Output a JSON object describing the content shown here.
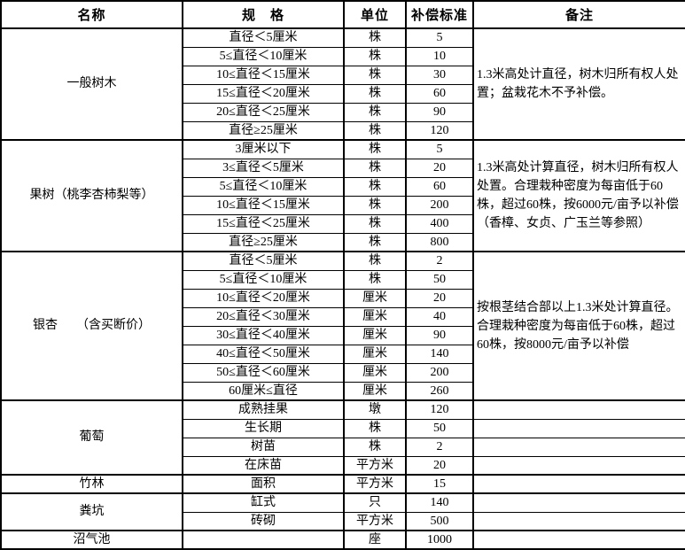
{
  "table": {
    "header": {
      "name": "名称",
      "spec": "规　格",
      "unit": "单位",
      "standard": "补偿标准",
      "remark": "备注"
    },
    "sections": [
      {
        "name": "一般树木",
        "remark_merged": true,
        "remark": "1.3米高处计直径，树木归所有权人处置；盆栽花木不予补偿。",
        "rows": [
          {
            "spec": "直径＜5厘米",
            "unit": "株",
            "standard": "5"
          },
          {
            "spec": "5≤直径＜10厘米",
            "unit": "株",
            "standard": "10"
          },
          {
            "spec": "10≤直径＜15厘米",
            "unit": "株",
            "standard": "30"
          },
          {
            "spec": "15≤直径＜20厘米",
            "unit": "株",
            "standard": "60"
          },
          {
            "spec": "20≤直径＜25厘米",
            "unit": "株",
            "standard": "90"
          },
          {
            "spec": "直径≥25厘米",
            "unit": "株",
            "standard": "120"
          }
        ]
      },
      {
        "name": "果树（桃李杏柿梨等）",
        "remark_merged": true,
        "remark": "1.3米高处计算直径，树木归所有权人处置。合理栽种密度为每亩低于60株，超过60株，按6000元/亩予以补偿（香樟、女贞、广玉兰等参照）",
        "rows": [
          {
            "spec": "3厘米以下",
            "unit": "株",
            "standard": "5"
          },
          {
            "spec": "3≤直径＜5厘米",
            "unit": "株",
            "standard": "20"
          },
          {
            "spec": "5≤直径＜10厘米",
            "unit": "株",
            "standard": "60"
          },
          {
            "spec": "10≤直径＜15厘米",
            "unit": "株",
            "standard": "200"
          },
          {
            "spec": "15≤直径＜25厘米",
            "unit": "株",
            "standard": "400"
          },
          {
            "spec": "直径≥25厘米",
            "unit": "株",
            "standard": "800"
          }
        ]
      },
      {
        "name": "银杏　　（含买断价）",
        "remark_merged": true,
        "remark": "按根茎结合部以上1.3米处计算直径。合理栽种密度为每亩低于60株，超过60株，按8000元/亩予以补偿",
        "rows": [
          {
            "spec": "直径＜5厘米",
            "unit": "株",
            "standard": "2"
          },
          {
            "spec": "5≤直径＜10厘米",
            "unit": "株",
            "standard": "50"
          },
          {
            "spec": "10≤直径＜20厘米",
            "unit": "厘米",
            "standard": "20"
          },
          {
            "spec": "20≤直径＜30厘米",
            "unit": "厘米",
            "standard": "40"
          },
          {
            "spec": "30≤直径＜40厘米",
            "unit": "厘米",
            "standard": "90"
          },
          {
            "spec": "40≤直径＜50厘米",
            "unit": "厘米",
            "standard": "140"
          },
          {
            "spec": "50≤直径＜60厘米",
            "unit": "厘米",
            "standard": "200"
          },
          {
            "spec": "60厘米≤直径",
            "unit": "厘米",
            "standard": "260"
          }
        ]
      },
      {
        "name": "葡萄",
        "remark_merged": false,
        "remark": "",
        "rows": [
          {
            "spec": "成熟挂果",
            "unit": "墩",
            "standard": "120"
          },
          {
            "spec": "生长期",
            "unit": "株",
            "standard": "50"
          },
          {
            "spec": "树苗",
            "unit": "株",
            "standard": "2"
          },
          {
            "spec": "在床苗",
            "unit": "平方米",
            "standard": "20"
          }
        ]
      },
      {
        "name": "竹林",
        "remark_merged": false,
        "remark": "",
        "rows": [
          {
            "spec": "面积",
            "unit": "平方米",
            "standard": "15"
          }
        ]
      },
      {
        "name": "粪坑",
        "remark_merged": false,
        "remark": "",
        "rows": [
          {
            "spec": "缸式",
            "unit": "只",
            "standard": "140"
          },
          {
            "spec": "砖砌",
            "unit": "平方米",
            "standard": "500"
          }
        ]
      },
      {
        "name": "沼气池",
        "remark_merged": false,
        "remark": "",
        "rows": [
          {
            "spec": "",
            "unit": "座",
            "standard": "1000"
          }
        ]
      }
    ]
  }
}
